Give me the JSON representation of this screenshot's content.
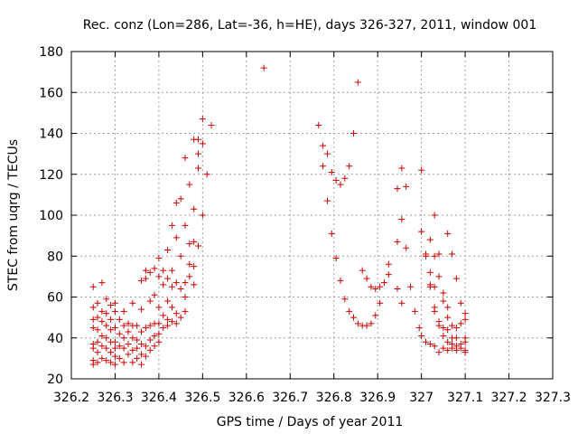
{
  "chart_data": {
    "type": "scatter",
    "title": "Rec. conz (Lon=286, Lat=-36, h=HE), days 326-327, 2011, window 001",
    "xlabel": "GPS time / Days of year 2011",
    "ylabel": "STEC from uqrg / TECUs",
    "xlim": [
      326.2,
      327.3
    ],
    "ylim": [
      20,
      180
    ],
    "xticks": [
      "326.2",
      "326.3",
      "326.4",
      "326.5",
      "326.6",
      "326.7",
      "326.8",
      "326.9",
      "327",
      "327.1",
      "327.2",
      "327.3"
    ],
    "yticks": [
      "20",
      "40",
      "60",
      "80",
      "100",
      "120",
      "140",
      "160",
      "180"
    ],
    "grid": true,
    "marker": "+",
    "color": "#cc0000",
    "series": [
      {
        "points": [
          [
            326.25,
            65
          ],
          [
            326.25,
            55
          ],
          [
            326.25,
            49
          ],
          [
            326.25,
            45
          ],
          [
            326.25,
            37
          ],
          [
            326.25,
            35
          ],
          [
            326.25,
            29
          ],
          [
            326.25,
            27
          ],
          [
            326.26,
            57
          ],
          [
            326.26,
            50
          ],
          [
            326.26,
            44
          ],
          [
            326.26,
            38
          ],
          [
            326.26,
            33
          ],
          [
            326.26,
            28
          ],
          [
            326.27,
            67
          ],
          [
            326.27,
            53
          ],
          [
            326.27,
            48
          ],
          [
            326.27,
            41
          ],
          [
            326.27,
            36
          ],
          [
            326.27,
            30
          ],
          [
            326.28,
            59
          ],
          [
            326.28,
            52
          ],
          [
            326.28,
            46
          ],
          [
            326.28,
            40
          ],
          [
            326.28,
            35
          ],
          [
            326.28,
            29
          ],
          [
            326.29,
            56
          ],
          [
            326.29,
            49
          ],
          [
            326.29,
            44
          ],
          [
            326.29,
            38
          ],
          [
            326.29,
            33
          ],
          [
            326.29,
            28
          ],
          [
            326.3,
            57
          ],
          [
            326.3,
            53
          ],
          [
            326.3,
            45
          ],
          [
            326.3,
            38
          ],
          [
            326.3,
            35
          ],
          [
            326.3,
            31
          ],
          [
            326.3,
            27
          ],
          [
            326.31,
            49
          ],
          [
            326.31,
            42
          ],
          [
            326.31,
            36
          ],
          [
            326.31,
            30
          ],
          [
            326.32,
            53
          ],
          [
            326.32,
            46
          ],
          [
            326.32,
            40
          ],
          [
            326.32,
            35
          ],
          [
            326.32,
            28
          ],
          [
            326.33,
            47
          ],
          [
            326.33,
            43
          ],
          [
            326.33,
            37
          ],
          [
            326.33,
            32
          ],
          [
            326.34,
            57
          ],
          [
            326.34,
            46
          ],
          [
            326.34,
            40
          ],
          [
            326.34,
            34
          ],
          [
            326.34,
            28
          ],
          [
            326.35,
            46
          ],
          [
            326.35,
            39
          ],
          [
            326.35,
            35
          ],
          [
            326.35,
            30
          ],
          [
            326.36,
            68
          ],
          [
            326.36,
            54
          ],
          [
            326.36,
            43
          ],
          [
            326.36,
            37
          ],
          [
            326.36,
            32
          ],
          [
            326.36,
            27
          ],
          [
            326.37,
            73
          ],
          [
            326.37,
            69
          ],
          [
            326.37,
            45
          ],
          [
            326.37,
            36
          ],
          [
            326.37,
            31
          ],
          [
            326.38,
            72
          ],
          [
            326.38,
            58
          ],
          [
            326.38,
            46
          ],
          [
            326.38,
            39
          ],
          [
            326.38,
            34
          ],
          [
            326.39,
            74
          ],
          [
            326.39,
            61
          ],
          [
            326.39,
            47
          ],
          [
            326.39,
            41
          ],
          [
            326.39,
            36
          ],
          [
            326.4,
            79
          ],
          [
            326.4,
            70
          ],
          [
            326.4,
            55
          ],
          [
            326.4,
            47
          ],
          [
            326.4,
            42
          ],
          [
            326.4,
            38
          ],
          [
            326.41,
            73
          ],
          [
            326.41,
            66
          ],
          [
            326.41,
            51
          ],
          [
            326.41,
            45
          ],
          [
            326.42,
            83
          ],
          [
            326.42,
            69
          ],
          [
            326.42,
            58
          ],
          [
            326.42,
            49
          ],
          [
            326.42,
            46
          ],
          [
            326.43,
            95
          ],
          [
            326.43,
            73
          ],
          [
            326.43,
            65
          ],
          [
            326.43,
            55
          ],
          [
            326.43,
            48
          ],
          [
            326.44,
            106
          ],
          [
            326.44,
            89
          ],
          [
            326.44,
            67
          ],
          [
            326.44,
            52
          ],
          [
            326.44,
            47
          ],
          [
            326.45,
            108
          ],
          [
            326.45,
            80
          ],
          [
            326.45,
            64
          ],
          [
            326.45,
            50
          ],
          [
            326.46,
            128
          ],
          [
            326.46,
            95
          ],
          [
            326.46,
            67
          ],
          [
            326.46,
            60
          ],
          [
            326.46,
            53
          ],
          [
            326.47,
            115
          ],
          [
            326.47,
            86
          ],
          [
            326.47,
            76
          ],
          [
            326.47,
            70
          ],
          [
            326.48,
            137
          ],
          [
            326.48,
            103
          ],
          [
            326.48,
            87
          ],
          [
            326.48,
            75
          ],
          [
            326.48,
            66
          ],
          [
            326.49,
            137
          ],
          [
            326.49,
            130
          ],
          [
            326.49,
            123
          ],
          [
            326.49,
            85
          ],
          [
            326.5,
            147
          ],
          [
            326.5,
            135
          ],
          [
            326.5,
            100
          ],
          [
            326.51,
            120
          ],
          [
            326.52,
            144
          ],
          [
            326.64,
            172
          ],
          [
            326.765,
            144
          ],
          [
            326.775,
            134
          ],
          [
            326.775,
            124
          ],
          [
            326.785,
            130
          ],
          [
            326.785,
            107
          ],
          [
            326.795,
            121
          ],
          [
            326.795,
            91
          ],
          [
            326.805,
            117
          ],
          [
            326.805,
            79
          ],
          [
            326.815,
            115
          ],
          [
            326.815,
            68
          ],
          [
            326.825,
            118
          ],
          [
            326.825,
            59
          ],
          [
            326.835,
            124
          ],
          [
            326.835,
            53
          ],
          [
            326.845,
            140
          ],
          [
            326.845,
            50
          ],
          [
            326.855,
            165
          ],
          [
            326.855,
            47
          ],
          [
            326.865,
            73
          ],
          [
            326.865,
            46
          ],
          [
            326.875,
            69
          ],
          [
            326.875,
            46
          ],
          [
            326.885,
            65
          ],
          [
            326.885,
            47
          ],
          [
            326.895,
            64
          ],
          [
            326.895,
            51
          ],
          [
            326.905,
            65
          ],
          [
            326.905,
            57
          ],
          [
            326.915,
            67
          ],
          [
            326.925,
            71
          ],
          [
            326.925,
            76
          ],
          [
            326.945,
            113
          ],
          [
            326.945,
            87
          ],
          [
            326.945,
            64
          ],
          [
            326.955,
            123
          ],
          [
            326.955,
            98
          ],
          [
            326.955,
            57
          ],
          [
            326.965,
            114
          ],
          [
            326.965,
            84
          ],
          [
            326.975,
            65
          ],
          [
            326.985,
            53
          ],
          [
            326.995,
            45
          ],
          [
            327.0,
            122
          ],
          [
            327.0,
            92
          ],
          [
            327.0,
            41
          ],
          [
            327.01,
            81
          ],
          [
            327.01,
            80
          ],
          [
            327.01,
            38
          ],
          [
            327.02,
            88
          ],
          [
            327.02,
            72
          ],
          [
            327.02,
            66
          ],
          [
            327.02,
            65
          ],
          [
            327.02,
            37
          ],
          [
            327.03,
            100
          ],
          [
            327.03,
            80
          ],
          [
            327.03,
            65
          ],
          [
            327.03,
            55
          ],
          [
            327.03,
            53
          ],
          [
            327.03,
            36
          ],
          [
            327.04,
            81
          ],
          [
            327.04,
            70
          ],
          [
            327.04,
            48
          ],
          [
            327.04,
            46
          ],
          [
            327.04,
            33
          ],
          [
            327.05,
            62
          ],
          [
            327.05,
            58
          ],
          [
            327.05,
            45
          ],
          [
            327.05,
            41
          ],
          [
            327.05,
            35
          ],
          [
            327.06,
            91
          ],
          [
            327.06,
            55
          ],
          [
            327.06,
            50
          ],
          [
            327.06,
            44
          ],
          [
            327.06,
            38
          ],
          [
            327.06,
            34
          ],
          [
            327.07,
            81
          ],
          [
            327.07,
            46
          ],
          [
            327.07,
            40
          ],
          [
            327.07,
            37
          ],
          [
            327.07,
            35
          ],
          [
            327.08,
            69
          ],
          [
            327.08,
            45
          ],
          [
            327.08,
            40
          ],
          [
            327.08,
            36
          ],
          [
            327.08,
            34
          ],
          [
            327.09,
            57
          ],
          [
            327.09,
            47
          ],
          [
            327.09,
            37
          ],
          [
            327.09,
            35
          ],
          [
            327.1,
            52
          ],
          [
            327.1,
            49
          ],
          [
            327.1,
            40
          ],
          [
            327.1,
            38
          ],
          [
            327.1,
            34
          ],
          [
            327.1,
            33
          ]
        ]
      }
    ]
  }
}
